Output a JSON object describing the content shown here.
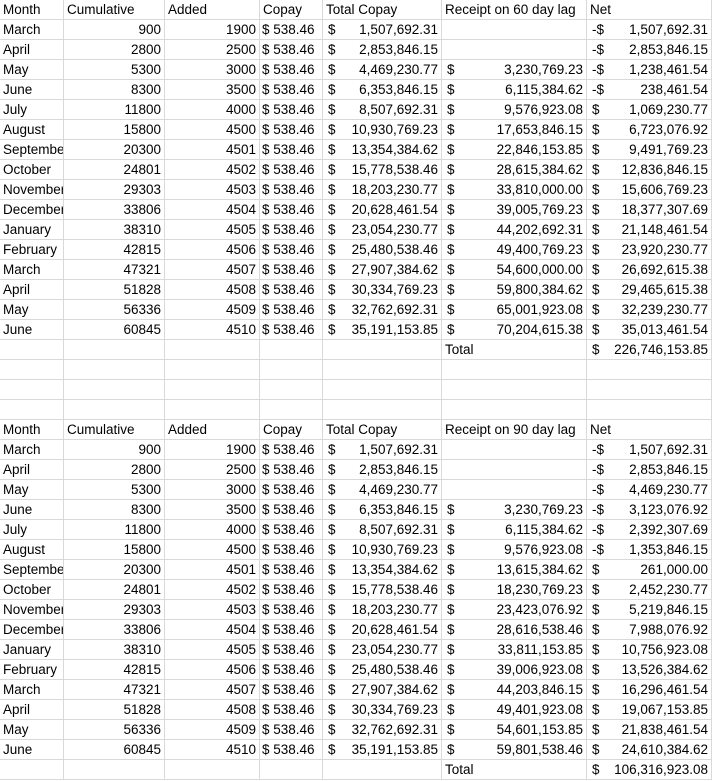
{
  "tables": [
    {
      "headers": [
        "Month",
        "Cumulative",
        "Added",
        "Copay",
        "Total Copay",
        "Receipt on 60 day lag",
        "Net"
      ],
      "rows": [
        [
          "March",
          "900",
          "1900",
          "$ 538.46",
          "1,507,692.31",
          "",
          "-$",
          "1,507,692.31"
        ],
        [
          "April",
          "2800",
          "2500",
          "$ 538.46",
          "2,853,846.15",
          "",
          "-$",
          "2,853,846.15"
        ],
        [
          "May",
          "5300",
          "3000",
          "$ 538.46",
          "4,469,230.77",
          "3,230,769.23",
          "-$",
          "1,238,461.54"
        ],
        [
          "June",
          "8300",
          "3500",
          "$ 538.46",
          "6,353,846.15",
          "6,115,384.62",
          "-$",
          "238,461.54"
        ],
        [
          "July",
          "11800",
          "4000",
          "$ 538.46",
          "8,507,692.31",
          "9,576,923.08",
          "$",
          "1,069,230.77"
        ],
        [
          "August",
          "15800",
          "4500",
          "$ 538.46",
          "10,930,769.23",
          "17,653,846.15",
          "$",
          "6,723,076.92"
        ],
        [
          "September",
          "20300",
          "4501",
          "$ 538.46",
          "13,354,384.62",
          "22,846,153.85",
          "$",
          "9,491,769.23"
        ],
        [
          "October",
          "24801",
          "4502",
          "$ 538.46",
          "15,778,538.46",
          "28,615,384.62",
          "$",
          "12,836,846.15"
        ],
        [
          "November",
          "29303",
          "4503",
          "$ 538.46",
          "18,203,230.77",
          "33,810,000.00",
          "$",
          "15,606,769.23"
        ],
        [
          "December",
          "33806",
          "4504",
          "$ 538.46",
          "20,628,461.54",
          "39,005,769.23",
          "$",
          "18,377,307.69"
        ],
        [
          "January",
          "38310",
          "4505",
          "$ 538.46",
          "23,054,230.77",
          "44,202,692.31",
          "$",
          "21,148,461.54"
        ],
        [
          "February",
          "42815",
          "4506",
          "$ 538.46",
          "25,480,538.46",
          "49,400,769.23",
          "$",
          "23,920,230.77"
        ],
        [
          "March",
          "47321",
          "4507",
          "$ 538.46",
          "27,907,384.62",
          "54,600,000.00",
          "$",
          "26,692,615.38"
        ],
        [
          "April",
          "51828",
          "4508",
          "$ 538.46",
          "30,334,769.23",
          "59,800,384.62",
          "$",
          "29,465,615.38"
        ],
        [
          "May",
          "56336",
          "4509",
          "$ 538.46",
          "32,762,692.31",
          "65,001,923.08",
          "$",
          "32,239,230.77"
        ],
        [
          "June",
          "60845",
          "4510",
          "$ 538.46",
          "35,191,153.85",
          "70,204,615.38",
          "$",
          "35,013,461.54"
        ]
      ],
      "total_label": "Total",
      "total_value": "226,746,153.85"
    },
    {
      "headers": [
        "Month",
        "Cumulative",
        "Added",
        "Copay",
        "Total Copay",
        "Receipt on 90 day lag",
        "Net"
      ],
      "rows": [
        [
          "March",
          "900",
          "1900",
          "$ 538.46",
          "1,507,692.31",
          "",
          "-$",
          "1,507,692.31"
        ],
        [
          "April",
          "2800",
          "2500",
          "$ 538.46",
          "2,853,846.15",
          "",
          "-$",
          "2,853,846.15"
        ],
        [
          "May",
          "5300",
          "3000",
          "$ 538.46",
          "4,469,230.77",
          "",
          "-$",
          "4,469,230.77"
        ],
        [
          "June",
          "8300",
          "3500",
          "$ 538.46",
          "6,353,846.15",
          "3,230,769.23",
          "-$",
          "3,123,076.92"
        ],
        [
          "July",
          "11800",
          "4000",
          "$ 538.46",
          "8,507,692.31",
          "6,115,384.62",
          "-$",
          "2,392,307.69"
        ],
        [
          "August",
          "15800",
          "4500",
          "$ 538.46",
          "10,930,769.23",
          "9,576,923.08",
          "-$",
          "1,353,846.15"
        ],
        [
          "September",
          "20300",
          "4501",
          "$ 538.46",
          "13,354,384.62",
          "13,615,384.62",
          "$",
          "261,000.00"
        ],
        [
          "October",
          "24801",
          "4502",
          "$ 538.46",
          "15,778,538.46",
          "18,230,769.23",
          "$",
          "2,452,230.77"
        ],
        [
          "November",
          "29303",
          "4503",
          "$ 538.46",
          "18,203,230.77",
          "23,423,076.92",
          "$",
          "5,219,846.15"
        ],
        [
          "December",
          "33806",
          "4504",
          "$ 538.46",
          "20,628,461.54",
          "28,616,538.46",
          "$",
          "7,988,076.92"
        ],
        [
          "January",
          "38310",
          "4505",
          "$ 538.46",
          "23,054,230.77",
          "33,811,153.85",
          "$",
          "10,756,923.08"
        ],
        [
          "February",
          "42815",
          "4506",
          "$ 538.46",
          "25,480,538.46",
          "39,006,923.08",
          "$",
          "13,526,384.62"
        ],
        [
          "March",
          "47321",
          "4507",
          "$ 538.46",
          "27,907,384.62",
          "44,203,846.15",
          "$",
          "16,296,461.54"
        ],
        [
          "April",
          "51828",
          "4508",
          "$ 538.46",
          "30,334,769.23",
          "49,401,923.08",
          "$",
          "19,067,153.85"
        ],
        [
          "May",
          "56336",
          "4509",
          "$ 538.46",
          "32,762,692.31",
          "54,601,153.85",
          "$",
          "21,838,461.54"
        ],
        [
          "June",
          "60845",
          "4510",
          "$ 538.46",
          "35,191,153.85",
          "59,801,538.46",
          "$",
          "24,610,384.62"
        ]
      ],
      "total_label": "Total",
      "total_value": "106,316,923.08"
    }
  ],
  "currency_symbol": "$",
  "colors": {
    "gridline": "#d9d9d9",
    "text": "#000000"
  }
}
